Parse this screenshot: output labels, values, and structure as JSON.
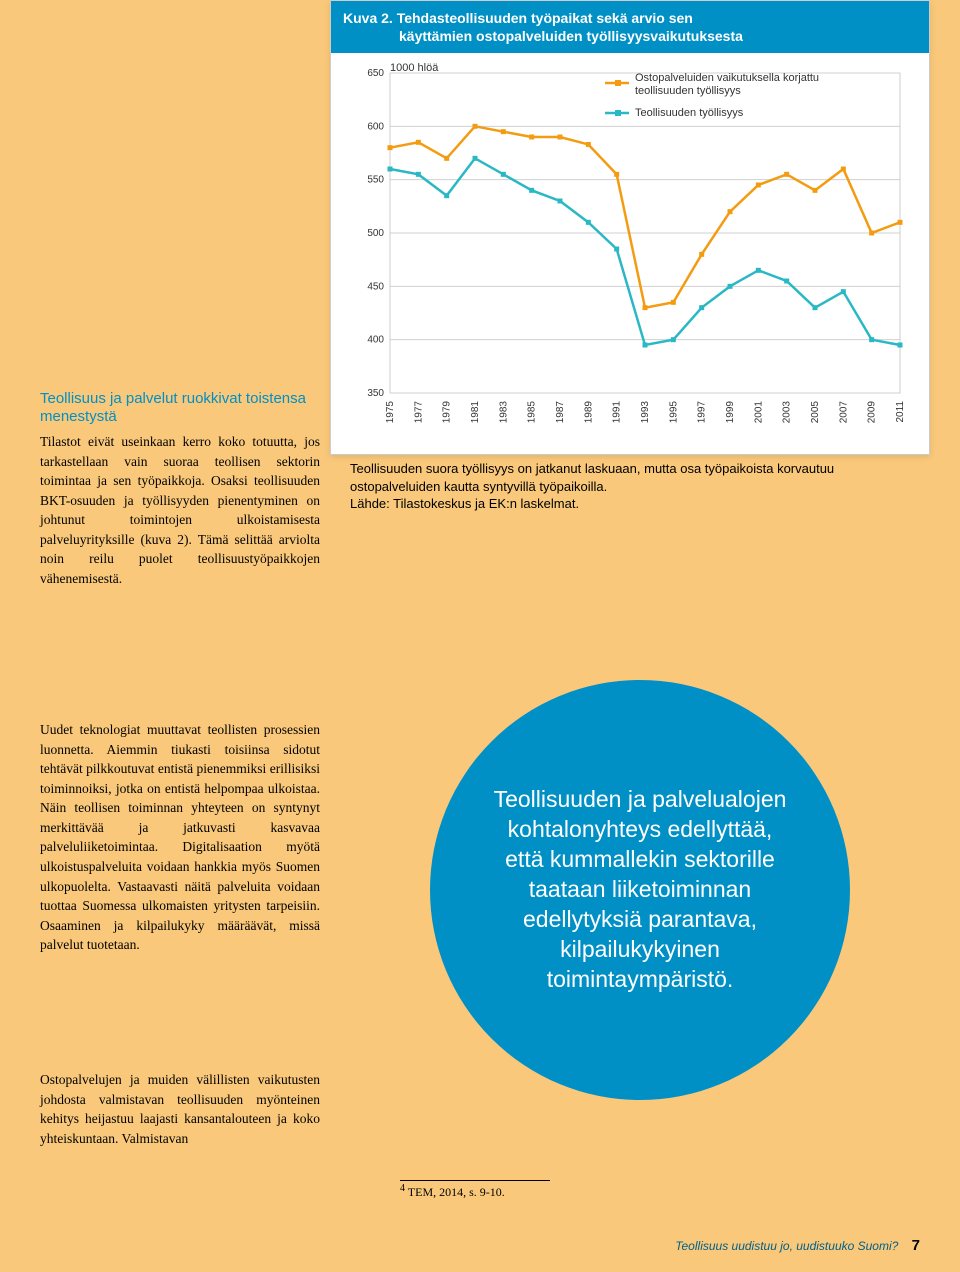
{
  "chart": {
    "title_line1": "Kuva 2. Tehdasteollisuuden työpaikat sekä arvio sen",
    "title_line2": "käyttämien ostopalveluiden työllisyysvaikutuksesta",
    "y_unit": "1000 hlöä",
    "type": "line",
    "xlabels": [
      "1975",
      "1977",
      "1979",
      "1981",
      "1983",
      "1985",
      "1987",
      "1989",
      "1991",
      "1993",
      "1995",
      "1997",
      "1999",
      "2001",
      "2003",
      "2005",
      "2007",
      "2009",
      "2011"
    ],
    "ylim": [
      350,
      650
    ],
    "ytick_step": 50,
    "series": [
      {
        "name": "Ostopalveluiden vaikutuksella korjattu teollisuuden työllisyys",
        "color": "#f39c12",
        "marker": "square",
        "values": [
          580,
          585,
          570,
          600,
          595,
          590,
          590,
          583,
          555,
          430,
          435,
          480,
          520,
          545,
          555,
          540,
          560,
          500,
          510
        ]
      },
      {
        "name": "Teollisuuden työllisyys",
        "color": "#29b8c4",
        "marker": "square",
        "values": [
          560,
          555,
          535,
          570,
          555,
          540,
          530,
          510,
          485,
          395,
          400,
          430,
          450,
          465,
          455,
          430,
          445,
          400,
          395
        ]
      }
    ],
    "background_color": "#ffffff",
    "grid_color": "#d0d0d0",
    "line_width": 2.5,
    "marker_size": 4
  },
  "caption": {
    "line1": "Teollisuuden suora työllisyys on jatkanut laskuaan, mutta osa työpaikoista korvautuu ostopalveluiden kautta syntyvillä työpaikoilla.",
    "line2": "Lähde: Tilastokeskus ja EK:n laskelmat."
  },
  "sidebar": {
    "heading": "Teollisuus ja palvelut ruokkivat toistensa menestystä",
    "body": "Tilastot eivät useinkaan kerro koko totuutta, jos tarkastellaan vain suoraa teollisen sektorin toimintaa ja sen työpaikkoja. Osaksi teollisuuden BKT-osuuden ja työllisyyden pienentyminen on johtunut toimintojen ulkoistamisesta palveluyrityksille (kuva 2). Tämä selittää arviolta noin reilu puolet teollisuustyöpaikkojen vähenemisestä."
  },
  "para2": "Uudet teknologiat muuttavat teollisten prosessien luonnetta. Aiemmin tiukasti toisiinsa sidotut tehtävät pilkkoutuvat entistä pienemmiksi erillisiksi toiminnoiksi, jotka on entistä helpompaa ulkoistaa. Näin teollisen toiminnan yhteyteen on syntynyt merkittävää ja jatkuvasti kasvavaa palveluliiketoimintaa. Digitalisaation myötä ulkoistuspalveluita voidaan hankkia myös Suomen ulkopuolelta. Vastaavasti näitä palveluita voidaan tuottaa Suomessa ulkomaisten yritysten tarpeisiin. Osaaminen ja kilpailukyky määräävät, missä palvelut tuotetaan.",
  "para3": "Ostopalvelujen ja muiden välillisten vaikutusten johdosta valmistavan teollisuuden myönteinen kehitys heijastuu laajasti kansantalouteen ja koko yhteiskuntaan. Valmistavan",
  "callout": "Teollisuuden ja palvelualojen kohtalonyhteys edellyttää, että kummallekin sektorille taataan liiketoiminnan edellytyksiä parantava, kilpailukykyinen toimintaympäristö.",
  "footnote": {
    "marker": "4",
    "text": "TEM, 2014, s. 9-10."
  },
  "footer": {
    "title": "Teollisuus uudistuu jo, uudistuuko Suomi?",
    "page": "7"
  }
}
